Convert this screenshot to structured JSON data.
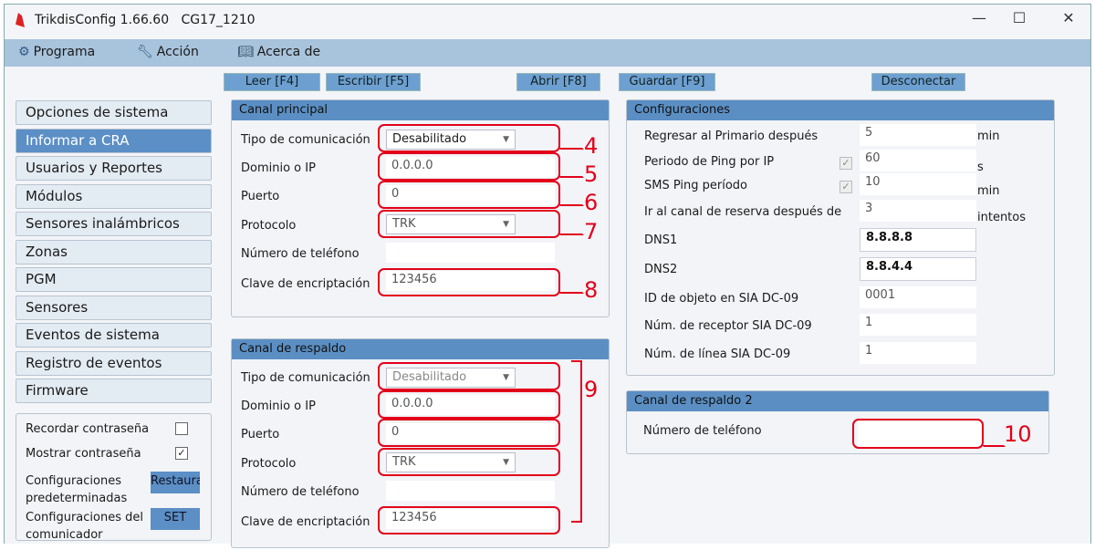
{
  "window": {
    "title": "TrikdisConfig 1.66.60",
    "device": "CG17_1210",
    "minimize": "—",
    "maximize": "☐",
    "close": "✕"
  },
  "menu": [
    {
      "label": "Programa",
      "icon": "gear-icon"
    },
    {
      "label": "Acción",
      "icon": "wrench-icon"
    },
    {
      "label": "Acerca de",
      "icon": "book-icon"
    }
  ],
  "toolbar": {
    "read": "Leer [F4]",
    "write": "Escribir [F5]",
    "open": "Abrir [F8]",
    "save": "Guardar [F9]",
    "disconnect": "Desconectar"
  },
  "sidebar": {
    "items": [
      {
        "label": "Opciones de sistema"
      },
      {
        "label": "Informar a CRA",
        "selected": true
      },
      {
        "label": "Usuarios y Reportes"
      },
      {
        "label": "Módulos"
      },
      {
        "label": "Sensores inalámbricos"
      },
      {
        "label": "Zonas"
      },
      {
        "label": "PGM"
      },
      {
        "label": "Sensores"
      },
      {
        "label": "Eventos de sistema"
      },
      {
        "label": "Registro de eventos"
      },
      {
        "label": "Firmware"
      }
    ],
    "remember_password": "Recordar contraseña",
    "remember_checked": false,
    "show_password": "Mostrar contraseña",
    "show_checked": true,
    "check_mark": "✓",
    "defaults_label": "Configuraciones predeterminadas",
    "restore_button": "Restaura",
    "communicator_label": "Configuraciones del comunicador",
    "set_button": "SET"
  },
  "primary": {
    "title": "Canal principal",
    "comm_type_label": "Tipo de comunicación",
    "comm_type": "Desabilitado",
    "domain_label": "Dominio o IP",
    "domain": "0.0.0.0",
    "port_label": "Puerto",
    "port": "0",
    "protocol_label": "Protocolo",
    "protocol": "TRK",
    "phone_label": "Número de teléfono",
    "phone": "",
    "key_label": "Clave de encriptación",
    "key": "123456"
  },
  "backup": {
    "title": "Canal de respaldo",
    "comm_type_label": "Tipo de comunicación",
    "comm_type": "Desabilitado",
    "domain_label": "Dominio o IP",
    "domain": "0.0.0.0",
    "port_label": "Puerto",
    "port": "0",
    "protocol_label": "Protocolo",
    "protocol": "TRK",
    "phone_label": "Número de teléfono",
    "phone": "",
    "key_label": "Clave de encriptación",
    "key": "123456"
  },
  "config": {
    "title": "Configuraciones",
    "rows": [
      {
        "label": "Regresar al Primario después",
        "value": "5",
        "unit": "min"
      },
      {
        "label": "Periodo de Ping por IP",
        "value": "60",
        "unit": "s",
        "checked": true
      },
      {
        "label": "SMS Ping período",
        "value": "10",
        "unit": "min",
        "checked": true
      },
      {
        "label": "Ir al canal de reserva después de",
        "value": "3",
        "unit": "intentos"
      },
      {
        "label": "DNS1",
        "value": "8.8.8.8"
      },
      {
        "label": "DNS2",
        "value": "8.8.4.4"
      },
      {
        "label": "ID de objeto en SIA DC-09",
        "value": "0001"
      },
      {
        "label": "Núm. de receptor SIA DC-09",
        "value": "1"
      },
      {
        "label": "Núm. de línea SIA DC-09",
        "value": "1"
      }
    ]
  },
  "backup2": {
    "title": "Canal de respaldo 2",
    "phone_label": "Número de teléfono",
    "phone": ""
  },
  "annotations": [
    "4",
    "5",
    "6",
    "7",
    "8",
    "9",
    "10"
  ],
  "colors": {
    "accent": "#5b8fc6",
    "annotation": "#e3001b"
  }
}
